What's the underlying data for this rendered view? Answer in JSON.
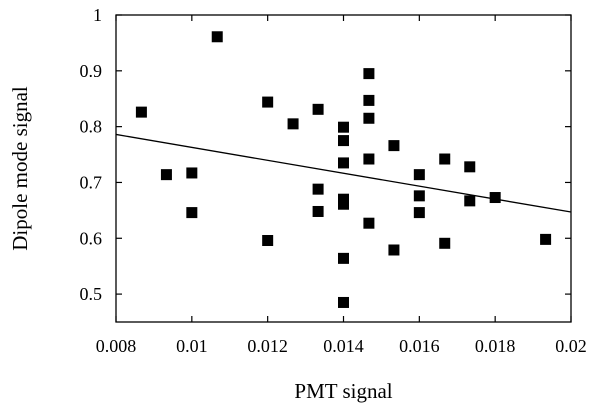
{
  "chart_data": {
    "type": "scatter",
    "title": "",
    "xlabel": "PMT signal",
    "ylabel": "Dipole mode signal",
    "xlim": [
      0.008,
      0.02
    ],
    "ylim": [
      0.45,
      1.0
    ],
    "xticks": [
      "0.008",
      "0.01",
      "0.012",
      "0.014",
      "0.016",
      "0.018",
      "0.02"
    ],
    "yticks": [
      "0.5",
      "0.6",
      "0.7",
      "0.8",
      "0.9",
      "1"
    ],
    "grid": false,
    "legend": "none",
    "marker": "square",
    "marker_color": "#000000",
    "points": [
      {
        "x": 0.00867,
        "y": 0.826
      },
      {
        "x": 0.00933,
        "y": 0.714
      },
      {
        "x": 0.01,
        "y": 0.717
      },
      {
        "x": 0.01,
        "y": 0.646
      },
      {
        "x": 0.01067,
        "y": 0.961
      },
      {
        "x": 0.012,
        "y": 0.844
      },
      {
        "x": 0.012,
        "y": 0.596
      },
      {
        "x": 0.01267,
        "y": 0.805
      },
      {
        "x": 0.01333,
        "y": 0.831
      },
      {
        "x": 0.01333,
        "y": 0.688
      },
      {
        "x": 0.01333,
        "y": 0.648
      },
      {
        "x": 0.014,
        "y": 0.799
      },
      {
        "x": 0.014,
        "y": 0.775
      },
      {
        "x": 0.014,
        "y": 0.735
      },
      {
        "x": 0.014,
        "y": 0.67
      },
      {
        "x": 0.014,
        "y": 0.661
      },
      {
        "x": 0.014,
        "y": 0.564
      },
      {
        "x": 0.014,
        "y": 0.485
      },
      {
        "x": 0.01467,
        "y": 0.895
      },
      {
        "x": 0.01467,
        "y": 0.847
      },
      {
        "x": 0.01467,
        "y": 0.815
      },
      {
        "x": 0.01467,
        "y": 0.742
      },
      {
        "x": 0.01467,
        "y": 0.627
      },
      {
        "x": 0.01533,
        "y": 0.766
      },
      {
        "x": 0.01533,
        "y": 0.579
      },
      {
        "x": 0.016,
        "y": 0.714
      },
      {
        "x": 0.016,
        "y": 0.676
      },
      {
        "x": 0.016,
        "y": 0.646
      },
      {
        "x": 0.01667,
        "y": 0.742
      },
      {
        "x": 0.01667,
        "y": 0.591
      },
      {
        "x": 0.01733,
        "y": 0.728
      },
      {
        "x": 0.01733,
        "y": 0.667
      },
      {
        "x": 0.018,
        "y": 0.673
      },
      {
        "x": 0.01933,
        "y": 0.598
      }
    ],
    "fit_line": {
      "x": [
        0.008,
        0.02
      ],
      "y": [
        0.786,
        0.647
      ]
    }
  }
}
